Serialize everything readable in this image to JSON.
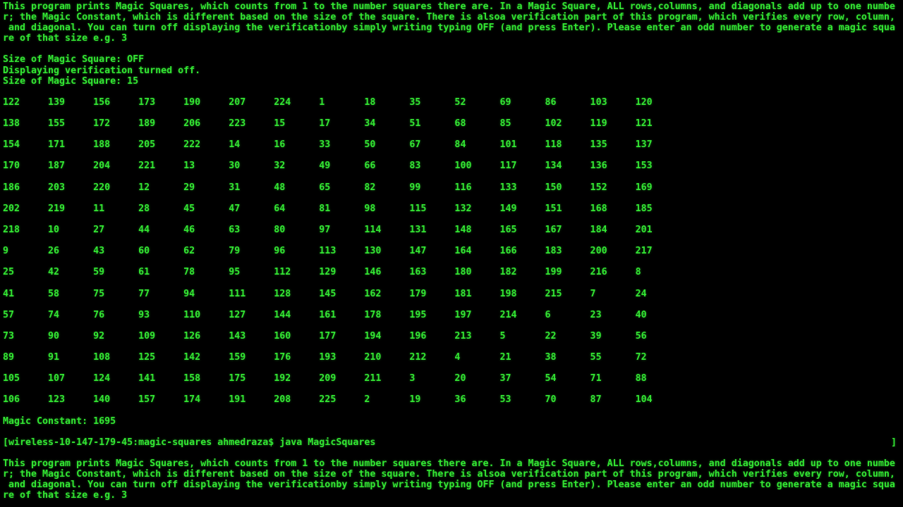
{
  "colors": {
    "background": "#000000",
    "terminal_green": "#33e633"
  },
  "terminal": {
    "intro_lines": [
      "This program prints Magic Squares, which counts from 1 to the number squares there are. In a Magic Square, ALL rows,columns, and diagonals add up to one numbe",
      "r; the Magic Constant, which is different based on the size of the square. There is alsoa verification part of this program, which verifies every row, column,",
      " and diagonal. You can turn off displaying the verificationby simply writing typing OFF (and press Enter). Please enter an odd number to generate a magic squa",
      "re of that size e.g. 3"
    ],
    "session": {
      "size_prompt_off_line": "Size of Magic Square: OFF",
      "verification_off_line": "Displaying verification turned off.",
      "size_prompt_15_line": "Size of Magic Square: 15"
    },
    "magic_constant_line": "Magic Constant: 1695",
    "prompt_line": "[wireless-10-147-179-45:magic-squares ahmedraza$ java MagicSquares",
    "right_edge_bracket": "]"
  },
  "grid": {
    "size": 15,
    "cell_width_chars": 8,
    "magic_constant": 1695,
    "rows": [
      [
        122,
        139,
        156,
        173,
        190,
        207,
        224,
        1,
        18,
        35,
        52,
        69,
        86,
        103,
        120
      ],
      [
        138,
        155,
        172,
        189,
        206,
        223,
        15,
        17,
        34,
        51,
        68,
        85,
        102,
        119,
        121
      ],
      [
        154,
        171,
        188,
        205,
        222,
        14,
        16,
        33,
        50,
        67,
        84,
        101,
        118,
        135,
        137
      ],
      [
        170,
        187,
        204,
        221,
        13,
        30,
        32,
        49,
        66,
        83,
        100,
        117,
        134,
        136,
        153
      ],
      [
        186,
        203,
        220,
        12,
        29,
        31,
        48,
        65,
        82,
        99,
        116,
        133,
        150,
        152,
        169
      ],
      [
        202,
        219,
        11,
        28,
        45,
        47,
        64,
        81,
        98,
        115,
        132,
        149,
        151,
        168,
        185
      ],
      [
        218,
        10,
        27,
        44,
        46,
        63,
        80,
        97,
        114,
        131,
        148,
        165,
        167,
        184,
        201
      ],
      [
        9,
        26,
        43,
        60,
        62,
        79,
        96,
        113,
        130,
        147,
        164,
        166,
        183,
        200,
        217
      ],
      [
        25,
        42,
        59,
        61,
        78,
        95,
        112,
        129,
        146,
        163,
        180,
        182,
        199,
        216,
        8
      ],
      [
        41,
        58,
        75,
        77,
        94,
        111,
        128,
        145,
        162,
        179,
        181,
        198,
        215,
        7,
        24
      ],
      [
        57,
        74,
        76,
        93,
        110,
        127,
        144,
        161,
        178,
        195,
        197,
        214,
        6,
        23,
        40
      ],
      [
        73,
        90,
        92,
        109,
        126,
        143,
        160,
        177,
        194,
        196,
        213,
        5,
        22,
        39,
        56
      ],
      [
        89,
        91,
        108,
        125,
        142,
        159,
        176,
        193,
        210,
        212,
        4,
        21,
        38,
        55,
        72
      ],
      [
        105,
        107,
        124,
        141,
        158,
        175,
        192,
        209,
        211,
        3,
        20,
        37,
        54,
        71,
        88
      ],
      [
        106,
        123,
        140,
        157,
        174,
        191,
        208,
        225,
        2,
        19,
        36,
        53,
        70,
        87,
        104
      ]
    ]
  }
}
